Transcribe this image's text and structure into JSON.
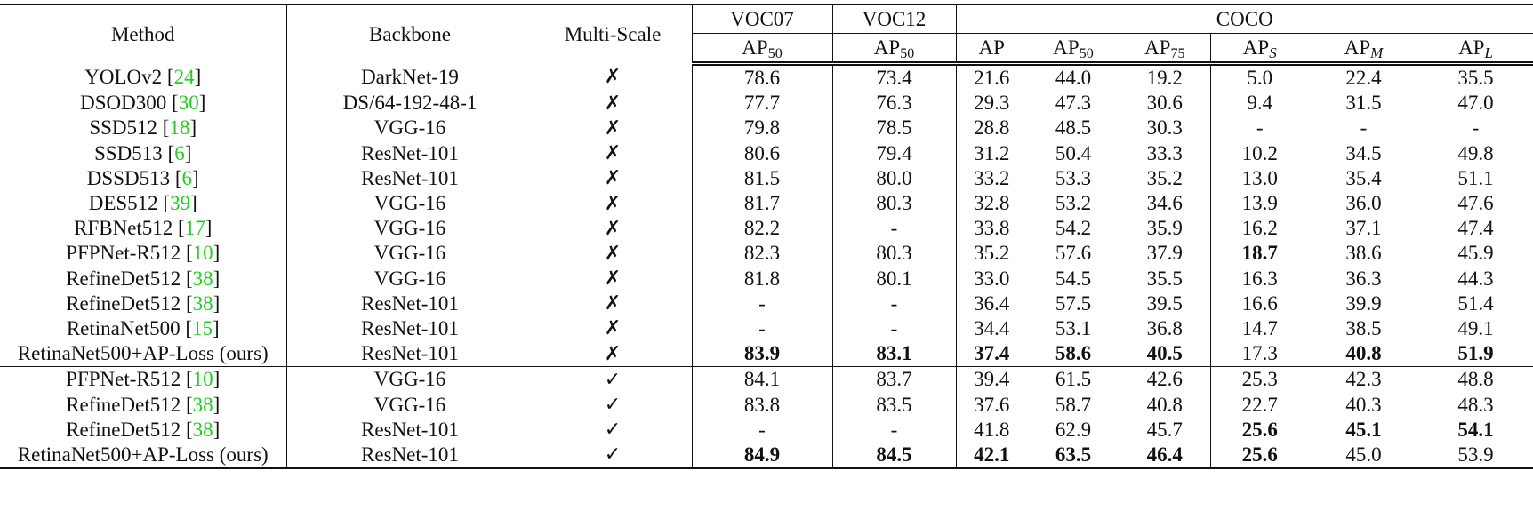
{
  "table": {
    "header": {
      "method": "Method",
      "backbone": "Backbone",
      "multi_scale": "Multi-Scale",
      "voc07": "VOC07",
      "voc12": "VOC12",
      "coco": "COCO",
      "sub": [
        {
          "base": "AP",
          "sub": "50",
          "italic": false
        },
        {
          "base": "AP",
          "sub": "50",
          "italic": false
        },
        {
          "base": "AP",
          "sub": "",
          "italic": false
        },
        {
          "base": "AP",
          "sub": "50",
          "italic": false
        },
        {
          "base": "AP",
          "sub": "75",
          "italic": false
        },
        {
          "base": "AP",
          "sub": "S",
          "italic": true
        },
        {
          "base": "AP",
          "sub": "M",
          "italic": true
        },
        {
          "base": "AP",
          "sub": "L",
          "italic": true
        }
      ]
    },
    "rows": [
      {
        "method": "YOLOv2",
        "ref": "24",
        "backbone": "DarkNet-19",
        "ms": "✗",
        "vals": [
          "78.6",
          "73.4",
          "21.6",
          "44.0",
          "19.2",
          "5.0",
          "22.4",
          "35.5"
        ],
        "bold": []
      },
      {
        "method": "DSOD300",
        "ref": "30",
        "backbone": "DS/64-192-48-1",
        "ms": "✗",
        "vals": [
          "77.7",
          "76.3",
          "29.3",
          "47.3",
          "30.6",
          "9.4",
          "31.5",
          "47.0"
        ],
        "bold": []
      },
      {
        "method": "SSD512",
        "ref": "18",
        "backbone": "VGG-16",
        "ms": "✗",
        "vals": [
          "79.8",
          "78.5",
          "28.8",
          "48.5",
          "30.3",
          "-",
          "-",
          "-"
        ],
        "bold": []
      },
      {
        "method": "SSD513",
        "ref": "6",
        "backbone": "ResNet-101",
        "ms": "✗",
        "vals": [
          "80.6",
          "79.4",
          "31.2",
          "50.4",
          "33.3",
          "10.2",
          "34.5",
          "49.8"
        ],
        "bold": []
      },
      {
        "method": "DSSD513",
        "ref": "6",
        "backbone": "ResNet-101",
        "ms": "✗",
        "vals": [
          "81.5",
          "80.0",
          "33.2",
          "53.3",
          "35.2",
          "13.0",
          "35.4",
          "51.1"
        ],
        "bold": []
      },
      {
        "method": "DES512",
        "ref": "39",
        "backbone": "VGG-16",
        "ms": "✗",
        "vals": [
          "81.7",
          "80.3",
          "32.8",
          "53.2",
          "34.6",
          "13.9",
          "36.0",
          "47.6"
        ],
        "bold": []
      },
      {
        "method": "RFBNet512",
        "ref": "17",
        "backbone": "VGG-16",
        "ms": "✗",
        "vals": [
          "82.2",
          "-",
          "33.8",
          "54.2",
          "35.9",
          "16.2",
          "37.1",
          "47.4"
        ],
        "bold": []
      },
      {
        "method": "PFPNet-R512",
        "ref": "10",
        "backbone": "VGG-16",
        "ms": "✗",
        "vals": [
          "82.3",
          "80.3",
          "35.2",
          "57.6",
          "37.9",
          "18.7",
          "38.6",
          "45.9"
        ],
        "bold": [
          5
        ]
      },
      {
        "method": "RefineDet512",
        "ref": "38",
        "backbone": "VGG-16",
        "ms": "✗",
        "vals": [
          "81.8",
          "80.1",
          "33.0",
          "54.5",
          "35.5",
          "16.3",
          "36.3",
          "44.3"
        ],
        "bold": []
      },
      {
        "method": "RefineDet512",
        "ref": "38",
        "backbone": "ResNet-101",
        "ms": "✗",
        "vals": [
          "-",
          "-",
          "36.4",
          "57.5",
          "39.5",
          "16.6",
          "39.9",
          "51.4"
        ],
        "bold": []
      },
      {
        "method": "RetinaNet500",
        "ref": "15",
        "backbone": "ResNet-101",
        "ms": "✗",
        "vals": [
          "-",
          "-",
          "34.4",
          "53.1",
          "36.8",
          "14.7",
          "38.5",
          "49.1"
        ],
        "bold": []
      },
      {
        "method": "RetinaNet500+AP-Loss (ours)",
        "ref": "",
        "backbone": "ResNet-101",
        "ms": "✗",
        "vals": [
          "83.9",
          "83.1",
          "37.4",
          "58.6",
          "40.5",
          "17.3",
          "40.8",
          "51.9"
        ],
        "bold": [
          0,
          1,
          2,
          3,
          4,
          6,
          7
        ]
      },
      {
        "method": "PFPNet-R512",
        "ref": "10",
        "backbone": "VGG-16",
        "ms": "✓",
        "vals": [
          "84.1",
          "83.7",
          "39.4",
          "61.5",
          "42.6",
          "25.3",
          "42.3",
          "48.8"
        ],
        "bold": []
      },
      {
        "method": "RefineDet512",
        "ref": "38",
        "backbone": "VGG-16",
        "ms": "✓",
        "vals": [
          "83.8",
          "83.5",
          "37.6",
          "58.7",
          "40.8",
          "22.7",
          "40.3",
          "48.3"
        ],
        "bold": []
      },
      {
        "method": "RefineDet512",
        "ref": "38",
        "backbone": "ResNet-101",
        "ms": "✓",
        "vals": [
          "-",
          "-",
          "41.8",
          "62.9",
          "45.7",
          "25.6",
          "45.1",
          "54.1"
        ],
        "bold": [
          5,
          6,
          7
        ]
      },
      {
        "method": "RetinaNet500+AP-Loss (ours)",
        "ref": "",
        "backbone": "ResNet-101",
        "ms": "✓",
        "vals": [
          "84.9",
          "84.5",
          "42.1",
          "63.5",
          "46.4",
          "25.6",
          "45.0",
          "53.9"
        ],
        "bold": [
          0,
          1,
          2,
          3,
          4,
          5
        ]
      }
    ]
  },
  "colors": {
    "citation": "#22cc22",
    "text": "#111111"
  }
}
